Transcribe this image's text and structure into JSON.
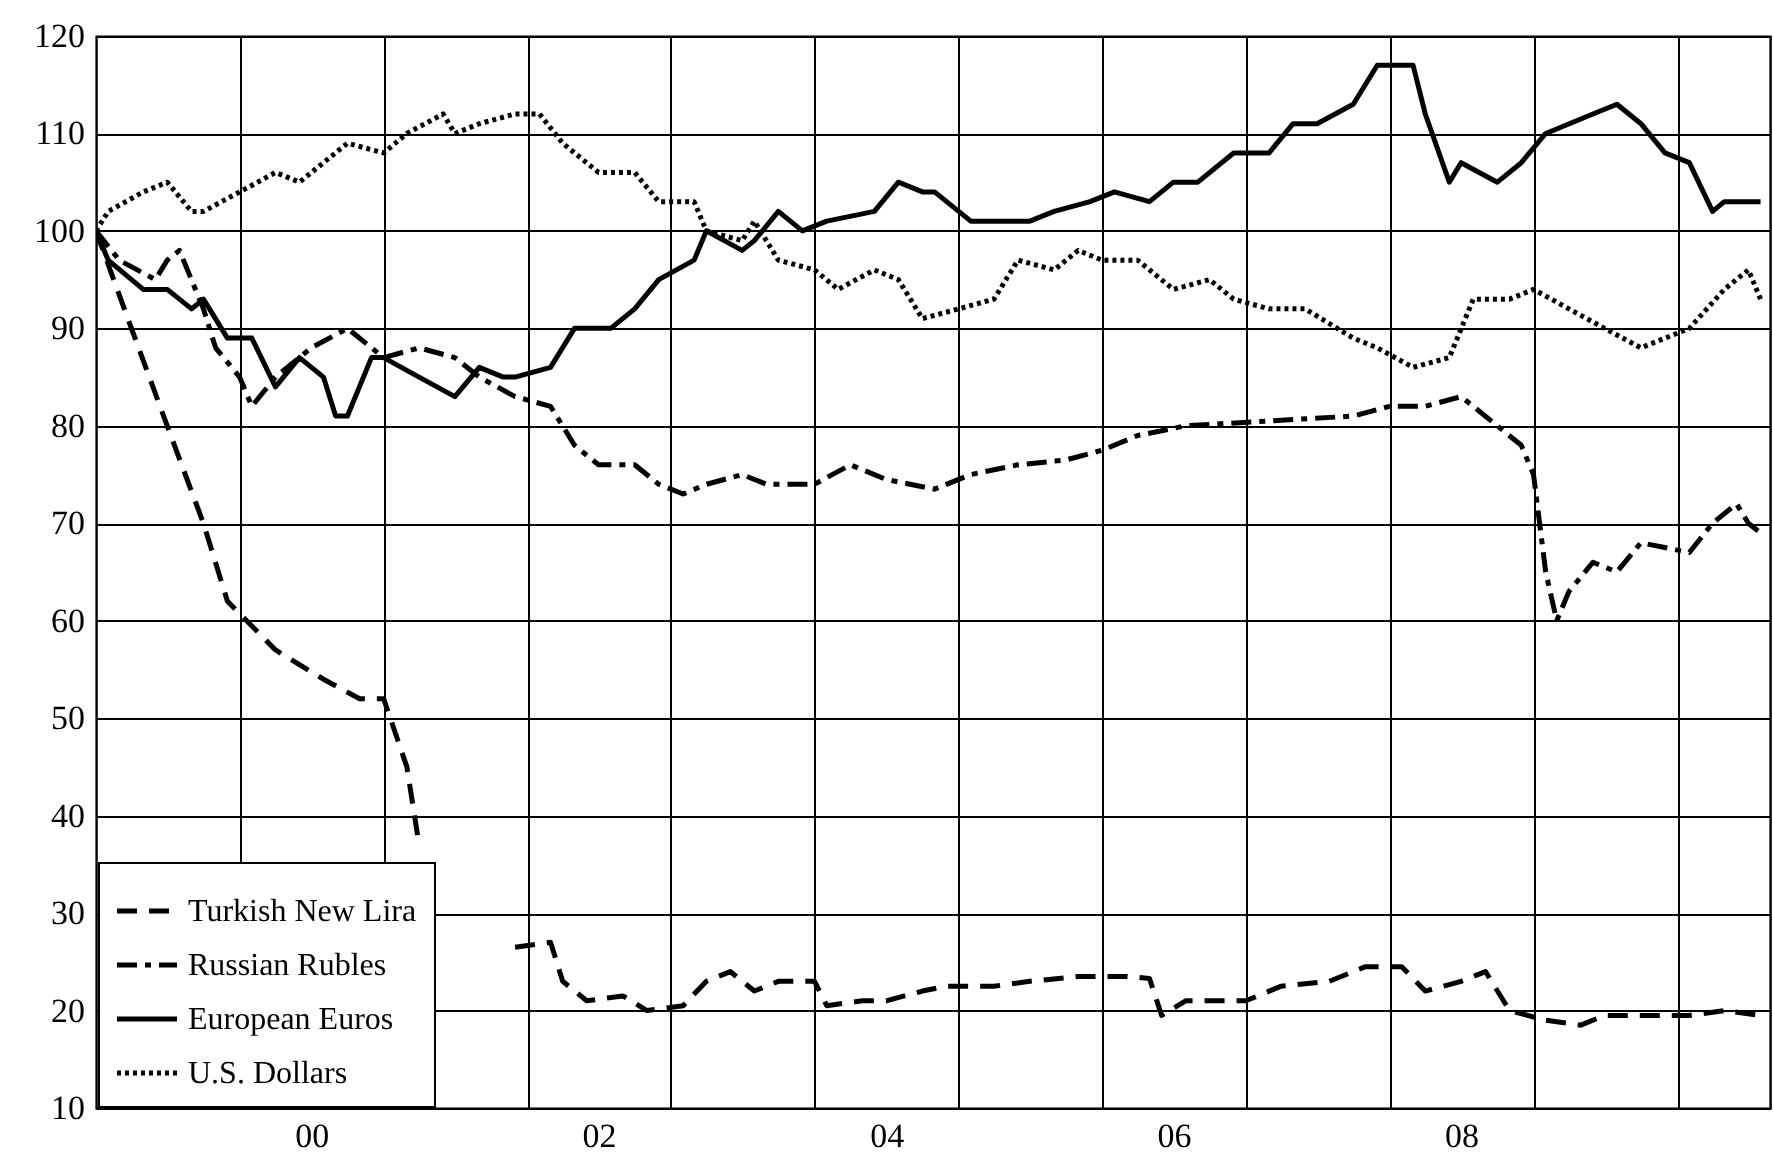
{
  "chart_data": {
    "type": "line",
    "xlim": [
      "1999-01",
      "2010-08-25"
    ],
    "ylim": [
      10,
      120
    ],
    "xticks": [
      {
        "value": "2000-01",
        "label": null
      },
      {
        "value": "2000-07",
        "label": "00"
      },
      {
        "value": "2001-01",
        "label": null
      },
      {
        "value": "2002-01",
        "label": null
      },
      {
        "value": "2002-07",
        "label": "02"
      },
      {
        "value": "2003-01",
        "label": null
      },
      {
        "value": "2004-01",
        "label": null
      },
      {
        "value": "2004-07",
        "label": "04"
      },
      {
        "value": "2005-01",
        "label": null
      },
      {
        "value": "2006-01",
        "label": null
      },
      {
        "value": "2006-07",
        "label": "06"
      },
      {
        "value": "2007-01",
        "label": null
      },
      {
        "value": "2008-01",
        "label": null
      },
      {
        "value": "2008-07",
        "label": "08"
      },
      {
        "value": "2009-01",
        "label": null
      },
      {
        "value": "2010-01",
        "label": null
      }
    ],
    "yticks": [
      10,
      20,
      30,
      40,
      50,
      60,
      70,
      80,
      90,
      100,
      110,
      120
    ],
    "grid": true,
    "legend": "bottom left",
    "series": [
      {
        "name": "Turkish New Lira",
        "color": "#000000",
        "line_style": "dashed",
        "x": [
          "1999-01",
          "1999-04",
          "1999-07",
          "1999-10",
          "1999-12",
          "2000-04",
          "2000-08",
          "2000-11",
          "2001-01",
          "2001-03",
          "2001-04",
          "2001-08",
          "2001-12",
          "2002-03",
          "2002-04",
          "2002-06",
          "2002-09",
          "2002-11",
          "2003-02",
          "2003-04",
          "2003-06",
          "2003-08",
          "2003-10",
          "2004-01",
          "2004-02",
          "2004-05",
          "2004-07",
          "2004-10",
          "2004-12",
          "2005-04",
          "2005-07",
          "2005-11",
          "2006-03",
          "2006-05",
          "2006-06",
          "2006-08",
          "2007-01",
          "2007-04",
          "2007-08",
          "2007-11",
          "2008-02",
          "2008-04",
          "2008-07",
          "2008-09",
          "2008-11",
          "2009-02",
          "2009-05",
          "2009-07",
          "2009-10",
          "2010-02",
          "2010-05",
          "2010-08"
        ],
        "values": [
          100,
          90,
          80,
          70,
          62,
          57,
          54,
          52,
          52,
          45,
          37,
          null,
          26.5,
          27,
          23,
          21,
          21.5,
          20,
          20.5,
          23,
          24,
          22,
          23,
          23,
          20.5,
          21,
          21,
          22,
          22.5,
          22.5,
          23,
          23.5,
          23.5,
          23.3,
          19.5,
          21,
          21,
          22.5,
          23,
          24.5,
          24.5,
          22,
          23,
          24,
          20,
          19,
          18.5,
          19.5,
          19.5,
          19.5,
          20,
          19.5
        ]
      },
      {
        "name": "Russian Rubles",
        "color": "#000000",
        "line_style": "dashdot",
        "x": [
          "1999-01",
          "1999-03",
          "1999-06",
          "1999-07",
          "1999-08",
          "1999-10",
          "1999-11",
          "2000-01",
          "2000-02",
          "2000-04",
          "2000-07",
          "2000-10",
          "2001-01",
          "2001-04",
          "2001-07",
          "2001-09",
          "2001-12",
          "2002-03",
          "2002-05",
          "2002-07",
          "2002-10",
          "2002-12",
          "2003-02",
          "2003-04",
          "2003-07",
          "2003-09",
          "2004-01",
          "2004-04",
          "2004-07",
          "2004-11",
          "2005-02",
          "2005-06",
          "2005-10",
          "2006-01",
          "2006-04",
          "2006-08",
          "2007-03",
          "2007-10",
          "2008-01",
          "2008-04",
          "2008-07",
          "2008-10",
          "2008-12",
          "2009-01",
          "2009-02",
          "2009-03",
          "2009-04",
          "2009-06",
          "2009-08",
          "2009-10",
          "2010-02",
          "2010-04",
          "2010-06",
          "2010-07",
          "2010-08"
        ],
        "values": [
          100,
          97,
          95,
          97,
          98,
          92,
          88,
          85,
          82,
          85,
          88,
          90,
          87,
          88,
          87,
          85,
          83,
          82,
          78,
          76,
          76,
          74,
          73,
          74,
          75,
          74,
          74,
          76,
          74.5,
          73.5,
          75,
          76,
          76.5,
          77.5,
          79,
          80,
          80.5,
          81,
          82,
          82,
          83,
          80,
          78,
          75,
          65,
          60,
          63,
          66,
          65,
          68,
          67,
          70,
          72,
          70,
          69
        ]
      },
      {
        "name": "European Euros",
        "color": "#000000",
        "line_style": "solid",
        "x": [
          "1999-01",
          "1999-02",
          "1999-05",
          "1999-07",
          "1999-09",
          "1999-10",
          "1999-12",
          "2000-02",
          "2000-04",
          "2000-06",
          "2000-08",
          "2000-09",
          "2000-10",
          "2000-12",
          "2001-01",
          "2001-04",
          "2001-07",
          "2001-09",
          "2001-11",
          "2001-12",
          "2002-03",
          "2002-05",
          "2002-08",
          "2002-10",
          "2002-12",
          "2003-03",
          "2003-04",
          "2003-07",
          "2003-08",
          "2003-10",
          "2003-12",
          "2004-02",
          "2004-06",
          "2004-08",
          "2004-10",
          "2004-11",
          "2005-02",
          "2005-04",
          "2005-07",
          "2005-09",
          "2005-12",
          "2006-02",
          "2006-05",
          "2006-07",
          "2006-09",
          "2006-12",
          "2007-03",
          "2007-05",
          "2007-07",
          "2007-10",
          "2007-12",
          "2008-03",
          "2008-04",
          "2008-06",
          "2008-07",
          "2008-10",
          "2008-12",
          "2009-02",
          "2009-06",
          "2009-08",
          "2009-10",
          "2009-12",
          "2010-02",
          "2010-04",
          "2010-05",
          "2010-08"
        ],
        "values": [
          100,
          97,
          94,
          94,
          92,
          93,
          89,
          89,
          84,
          87,
          85,
          81,
          81,
          87,
          87,
          85,
          83,
          86,
          85,
          85,
          86,
          90,
          90,
          92,
          95,
          97,
          100,
          98,
          99,
          102,
          100,
          101,
          102,
          105,
          104,
          104,
          101,
          101,
          101,
          102,
          103,
          104,
          103,
          105,
          105,
          108,
          108,
          111,
          111,
          113,
          117,
          117,
          112,
          105,
          107,
          105,
          107,
          110,
          112,
          113,
          111,
          108,
          107,
          102,
          103,
          103
        ]
      },
      {
        "name": "U.S. Dollars",
        "color": "#000000",
        "line_style": "dotted",
        "x": [
          "1999-01",
          "1999-02",
          "1999-05",
          "1999-07",
          "1999-09",
          "1999-10",
          "2000-01",
          "2000-04",
          "2000-06",
          "2000-08",
          "2000-10",
          "2001-01",
          "2001-03",
          "2001-06",
          "2001-07",
          "2001-09",
          "2001-12",
          "2002-02",
          "2002-04",
          "2002-07",
          "2002-10",
          "2002-12",
          "2003-03",
          "2003-04",
          "2003-07",
          "2003-08",
          "2003-10",
          "2004-01",
          "2004-03",
          "2004-06",
          "2004-08",
          "2004-10",
          "2005-01",
          "2005-04",
          "2005-06",
          "2005-09",
          "2005-11",
          "2006-01",
          "2006-04",
          "2006-07",
          "2006-10",
          "2006-12",
          "2007-03",
          "2007-06",
          "2007-10",
          "2007-12",
          "2008-03",
          "2008-06",
          "2008-08",
          "2008-11",
          "2009-01",
          "2009-04",
          "2009-07",
          "2009-10",
          "2010-02",
          "2010-05",
          "2010-07",
          "2010-08"
        ],
        "values": [
          100,
          102,
          104,
          105,
          102,
          102,
          104,
          106,
          105,
          107,
          109,
          108,
          110,
          112,
          110,
          111,
          112,
          112,
          109,
          106,
          106,
          103,
          103,
          100,
          99,
          101,
          97,
          96,
          94,
          96,
          95,
          91,
          92,
          93,
          97,
          96,
          98,
          97,
          97,
          94,
          95,
          93,
          92,
          92,
          89,
          88,
          86,
          87,
          93,
          93,
          94,
          92,
          90,
          88,
          90,
          94,
          96,
          93
        ]
      }
    ]
  }
}
